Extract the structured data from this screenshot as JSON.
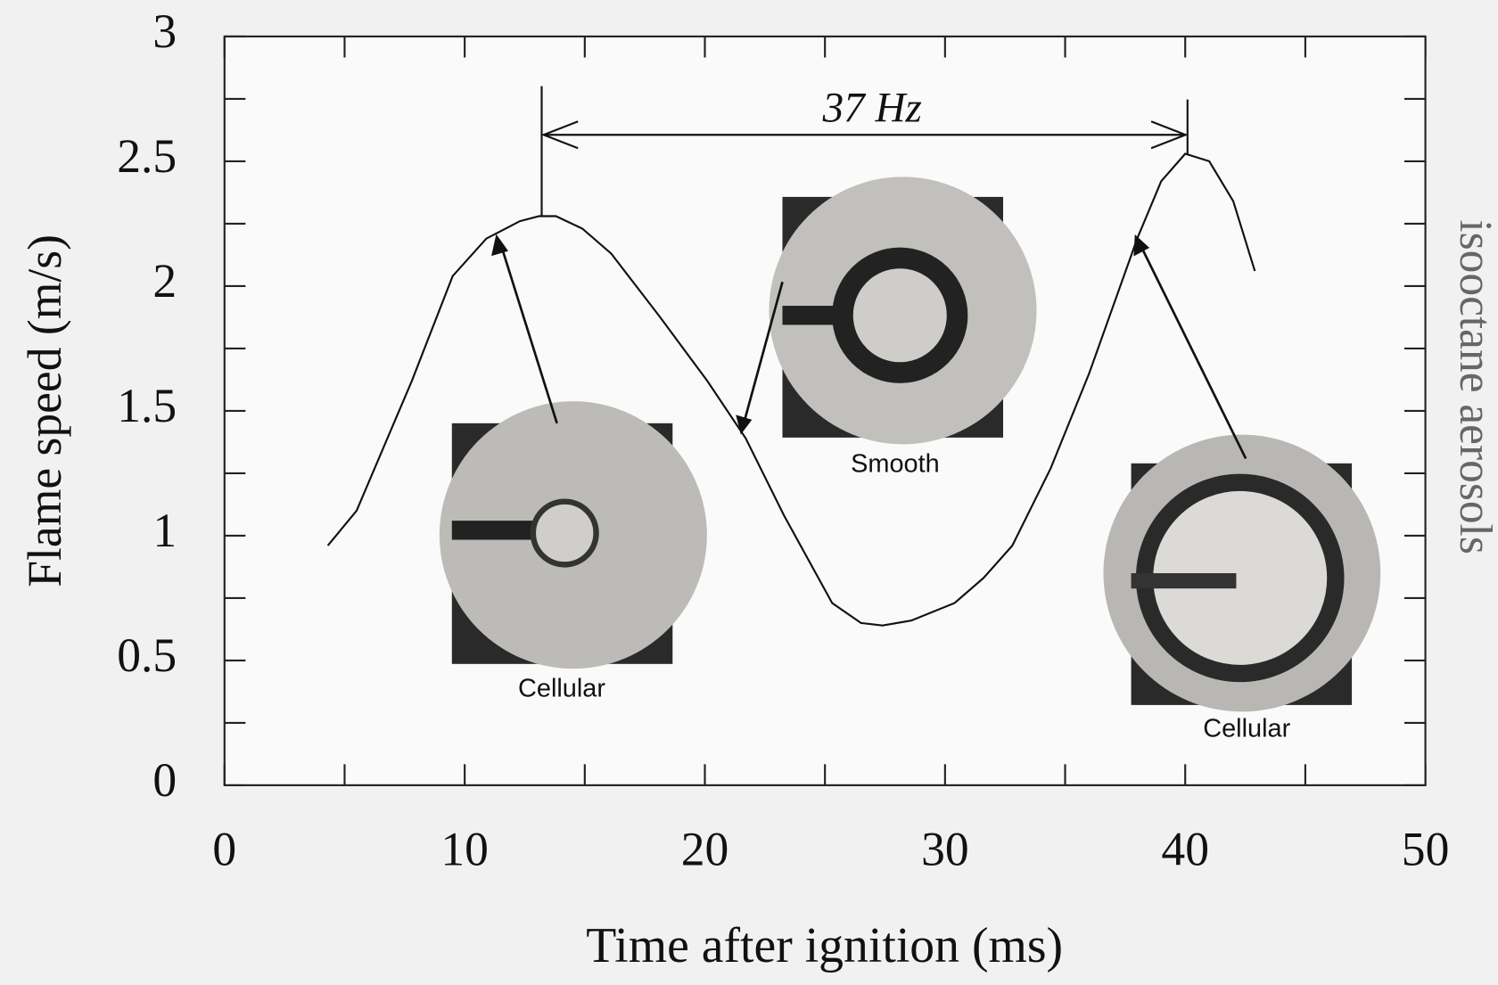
{
  "chart_data": {
    "type": "line",
    "xlabel": "Time after ignition (ms)",
    "ylabel": "Flame speed (m/s)",
    "side_label": "isooctane aerosols",
    "period_label": "37 Hz",
    "inset_labels": [
      "Cellular",
      "Smooth",
      "Cellular"
    ],
    "x": [
      4.3,
      5.5,
      7.8,
      9.5,
      10.9,
      12.3,
      13.1,
      13.8,
      14.9,
      16.1,
      18.1,
      20.1,
      21.7,
      23.3,
      25.3,
      26.5,
      27.4,
      28.6,
      30.4,
      31.6,
      32.8,
      34.4,
      36.0,
      38.0,
      39.0,
      40.0,
      41.0,
      42.0,
      42.9
    ],
    "values": [
      0.96,
      1.1,
      1.62,
      2.04,
      2.19,
      2.26,
      2.28,
      2.28,
      2.23,
      2.13,
      1.88,
      1.62,
      1.39,
      1.08,
      0.73,
      0.65,
      0.64,
      0.66,
      0.73,
      0.83,
      0.96,
      1.27,
      1.65,
      2.19,
      2.42,
      2.53,
      2.5,
      2.34,
      2.06
    ],
    "color": "#111111",
    "xlim": [
      0,
      50
    ],
    "ylim": [
      0,
      3
    ],
    "xticks": [
      0,
      10,
      20,
      30,
      40,
      50
    ],
    "yticks": [
      0,
      0.5,
      1,
      1.5,
      2,
      2.5,
      3
    ],
    "xminorticks": [
      5,
      15,
      25,
      35,
      45
    ],
    "yminorticks": [
      0.25,
      0.75,
      1.25,
      1.75,
      2.25,
      2.75
    ]
  }
}
